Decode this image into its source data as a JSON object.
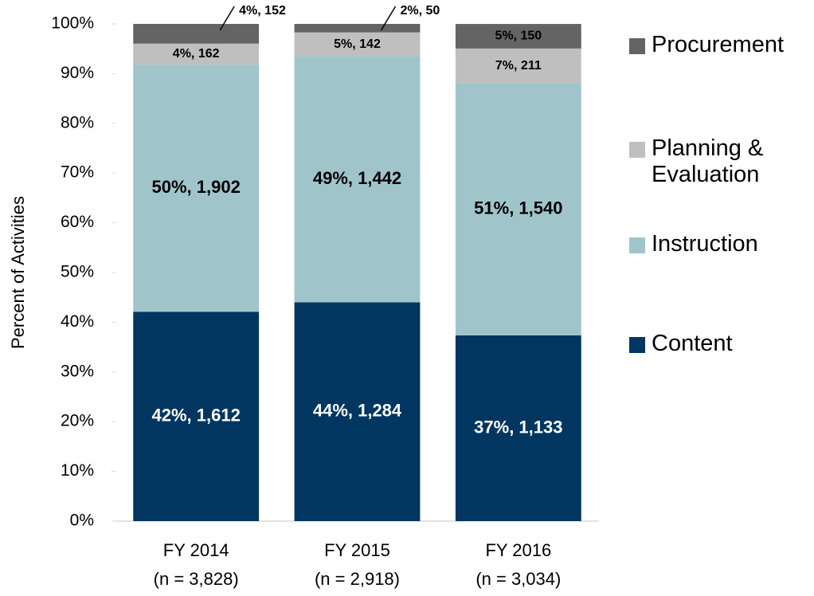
{
  "chart_data": {
    "type": "stacked_bar",
    "y_axis_label": "Percent of Activities",
    "categories": [
      "FY 2014",
      "FY 2015",
      "FY 2016"
    ],
    "category_notes": [
      "(n = 3,828)",
      "(n = 2,918)",
      "(n = 3,034)"
    ],
    "ylim": [
      0,
      100
    ],
    "yticks": [
      {
        "value": 0,
        "label": "0%"
      },
      {
        "value": 10,
        "label": "10%"
      },
      {
        "value": 20,
        "label": "20%"
      },
      {
        "value": 30,
        "label": "30%"
      },
      {
        "value": 40,
        "label": "40%"
      },
      {
        "value": 50,
        "label": "50%"
      },
      {
        "value": 60,
        "label": "60%"
      },
      {
        "value": 70,
        "label": "70%"
      },
      {
        "value": 80,
        "label": "80%"
      },
      {
        "value": 90,
        "label": "90%"
      },
      {
        "value": 100,
        "label": "100%"
      }
    ],
    "series": [
      {
        "name": "Content",
        "color": "#003660",
        "label_color": "#ffffff",
        "values": [
          42.11,
          44.0,
          37.34
        ],
        "value_labels": [
          "42%, 1,612",
          "44%, 1,284",
          "37%, 1,133"
        ]
      },
      {
        "name": "Instruction",
        "color": "#9fc5cb",
        "label_color": "#000000",
        "values": [
          49.69,
          49.42,
          50.76
        ],
        "value_labels": [
          "50%, 1,902",
          "49%, 1,442",
          "51%, 1,540"
        ]
      },
      {
        "name": "Planning & Evaluation",
        "color": "#bfbfbf",
        "label_color": "#000000",
        "values": [
          4.23,
          4.87,
          6.95
        ],
        "value_labels": [
          "4%, 162",
          "5%, 142",
          "7%, 211"
        ]
      },
      {
        "name": "Procurement",
        "color": "#646464",
        "label_color": "#000000",
        "values": [
          3.97,
          1.71,
          4.94
        ],
        "value_labels": [
          "4%, 152",
          "2%, 50",
          "5%, 150"
        ]
      }
    ],
    "legend": "right"
  }
}
